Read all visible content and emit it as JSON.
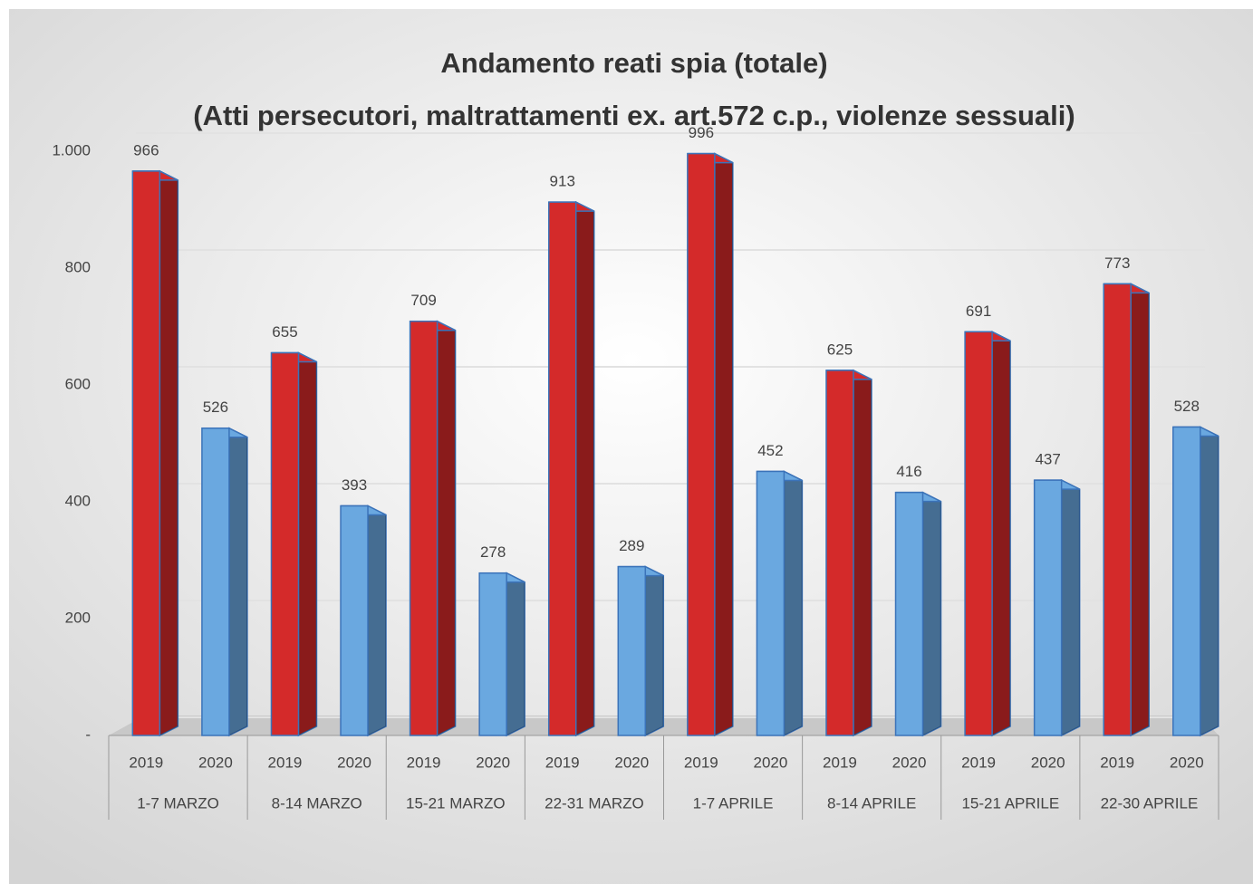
{
  "chart_data": {
    "type": "bar",
    "title": "Andamento reati spia (totale)",
    "subtitle": "(Atti persecutori, maltrattamenti ex. art.572 c.p., violenze sessuali)",
    "categories": [
      "1-7 MARZO",
      "8-14 MARZO",
      "15-21 MARZO",
      "22-31 MARZO",
      "1-7 APRILE",
      "8-14 APRILE",
      "15-21 APRILE",
      "22-30 APRILE"
    ],
    "series": [
      {
        "name": "2019",
        "color": "#d42a2a",
        "values": [
          966,
          655,
          709,
          913,
          996,
          625,
          691,
          773
        ]
      },
      {
        "name": "2020",
        "color": "#6aa8e0",
        "values": [
          526,
          393,
          278,
          289,
          452,
          416,
          437,
          528
        ]
      }
    ],
    "ylim": [
      0,
      1000
    ],
    "yticks": [
      {
        "value": 0,
        "label": "-"
      },
      200,
      400,
      600,
      800,
      {
        "value": 1000,
        "label": "1.000"
      }
    ],
    "grid": true
  }
}
